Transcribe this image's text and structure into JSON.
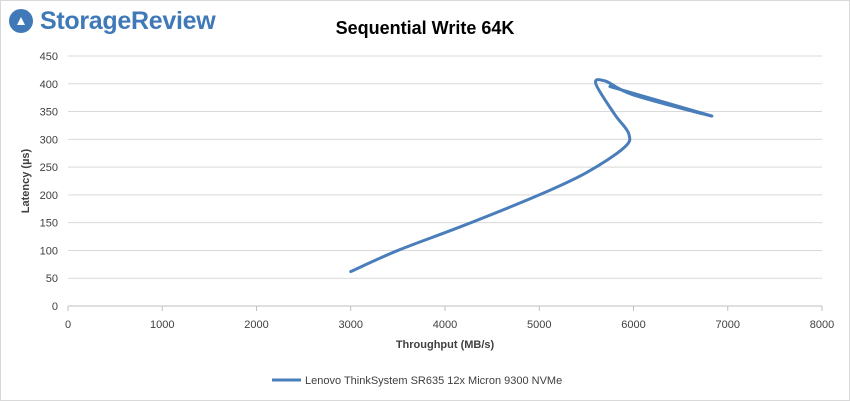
{
  "brand": {
    "name": "StorageReview",
    "color": "#3f79b7"
  },
  "chart_data": {
    "type": "line",
    "title": "Sequential Write 64K",
    "xlabel": "Throughput (MB/s)",
    "ylabel": "Latency (µs)",
    "xlim": [
      0,
      8000
    ],
    "ylim": [
      0,
      450
    ],
    "xticks": [
      0,
      1000,
      2000,
      3000,
      4000,
      5000,
      6000,
      7000,
      8000
    ],
    "yticks": [
      0,
      50,
      100,
      150,
      200,
      250,
      300,
      350,
      400,
      450
    ],
    "grid": "horizontal",
    "legend_position": "bottom",
    "series": [
      {
        "name": "Lenovo ThinkSystem SR635 12x Micron 9300 NVMe",
        "color": "#4a7ebb",
        "points": [
          [
            3000,
            62
          ],
          [
            3500,
            100
          ],
          [
            4200,
            145
          ],
          [
            5000,
            200
          ],
          [
            5500,
            240
          ],
          [
            5900,
            285
          ],
          [
            5950,
            310
          ],
          [
            5800,
            345
          ],
          [
            5600,
            400
          ],
          [
            5700,
            405
          ],
          [
            6000,
            380
          ],
          [
            6830,
            342
          ],
          [
            5750,
            395
          ]
        ]
      }
    ]
  }
}
